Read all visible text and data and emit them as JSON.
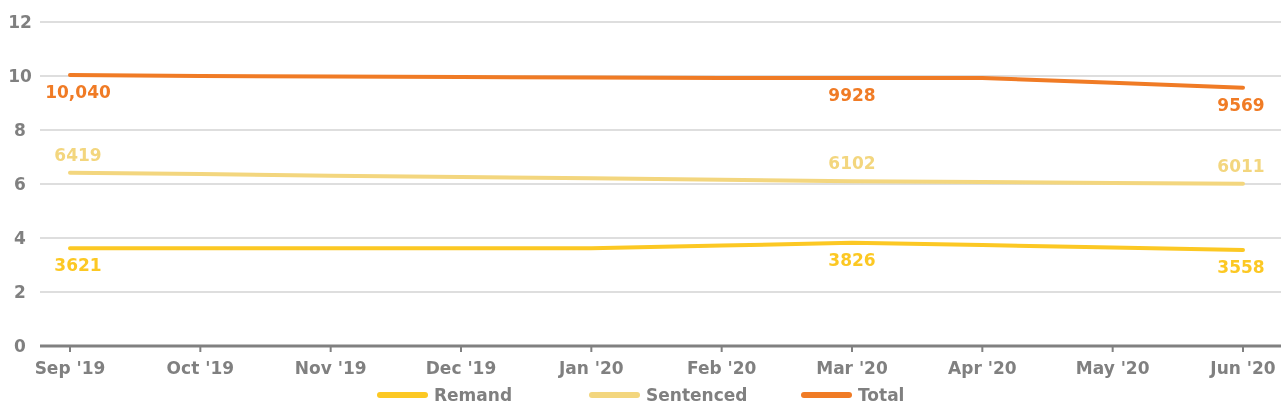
{
  "chart_data": {
    "type": "line",
    "categories": [
      "Sep '19",
      "Oct '19",
      "Nov '19",
      "Dec '19",
      "Jan '20",
      "Feb '20",
      "Mar '20",
      "Apr '20",
      "May '20",
      "Jun '20"
    ],
    "series": [
      {
        "name": "Remand",
        "color": "#fcc823",
        "values": [
          3.621,
          3.62,
          3.62,
          3.62,
          3.62,
          3.72,
          3.826,
          3.74,
          3.65,
          3.558
        ]
      },
      {
        "name": "Sentenced",
        "color": "#f3d67e",
        "values": [
          6.419,
          6.37,
          6.31,
          6.26,
          6.21,
          6.16,
          6.102,
          6.07,
          6.04,
          6.011
        ]
      },
      {
        "name": "Total",
        "color": "#f07b25",
        "values": [
          10.04,
          10.0,
          9.98,
          9.96,
          9.94,
          9.93,
          9.928,
          9.93,
          9.75,
          9.569
        ]
      }
    ],
    "annotations": [
      {
        "text": "3621",
        "x": "Sep '19",
        "y": 3.621
      },
      {
        "text": "3826",
        "x": "Mar '20",
        "y": 3.826
      },
      {
        "text": "3558",
        "x": "Jun '20",
        "y": 3.558
      },
      {
        "text": "6419",
        "x": "Sep '19",
        "y": 6.419
      },
      {
        "text": "6102",
        "x": "Mar '20",
        "y": 6.102
      },
      {
        "text": "6011",
        "x": "Jun '20",
        "y": 6.011
      },
      {
        "text": "10,040",
        "x": "Sep '19",
        "y": 10.04
      },
      {
        "text": "9928",
        "x": "Mar '20",
        "y": 9.928
      },
      {
        "text": "9569",
        "x": "Jun '20",
        "y": 9.569
      }
    ],
    "ylim": [
      0,
      12
    ],
    "yticks": [
      0,
      2,
      4,
      6,
      8,
      10,
      12
    ],
    "grid": "y",
    "legend": "bottom",
    "marker": "none",
    "line_style": "solid"
  }
}
